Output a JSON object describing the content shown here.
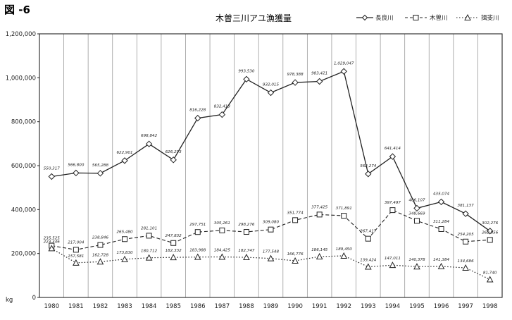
{
  "figure_label": "図 -6",
  "chart_data": {
    "type": "line",
    "title": "木曽三川アユ漁獲量",
    "xlabel": "",
    "ylabel": "",
    "y_unit": "kg",
    "ylim": [
      0,
      1200000
    ],
    "y_ticks": [
      0,
      200000,
      400000,
      600000,
      800000,
      1000000,
      1200000
    ],
    "y_tick_labels": [
      "0",
      "200,000",
      "400,000",
      "600,000",
      "800,000",
      "1,000,000",
      "1,200,000"
    ],
    "x": [
      "1980",
      "1981",
      "1982",
      "1983",
      "1984",
      "1985",
      "1986",
      "1987",
      "1988",
      "1989",
      "1990",
      "1991",
      "1992",
      "1993",
      "1994",
      "1995",
      "1996",
      "1997",
      "1998"
    ],
    "grid": "vertical",
    "legend_position": "top-right",
    "series": [
      {
        "name": "長良川",
        "marker": "diamond",
        "line": "solid",
        "values": [
          550317,
          566800,
          565288,
          622901,
          698842,
          626213,
          816228,
          832413,
          993530,
          932015,
          978388,
          983421,
          1029047,
          562274,
          641414,
          406107,
          435074,
          381137,
          302276
        ],
        "labels": [
          "550,317",
          "566,800",
          "565,288",
          "622,901",
          "698,842",
          "626,213",
          "816,228",
          "832,413",
          "993,530",
          "932,015",
          "978,388",
          "983,421",
          "1,029,047",
          "562,274",
          "641,414",
          "406,107",
          "435,074",
          "381,137",
          "302,276"
        ]
      },
      {
        "name": "木曽川",
        "marker": "square",
        "line": "dashed",
        "values": [
          235525,
          217004,
          238846,
          265480,
          281101,
          247832,
          297751,
          305261,
          298276,
          309080,
          351774,
          377425,
          371891,
          267417,
          397497,
          348669,
          311284,
          254205,
          262056
        ],
        "labels": [
          "235,525",
          "217,004",
          "238,846",
          "265,480",
          "281,101",
          "247,832",
          "297,751",
          "305,261",
          "298,276",
          "309,080",
          "351,774",
          "377,425",
          "371,891",
          "267,417",
          "397,497",
          "348,669",
          "311,284",
          "254,205",
          "262,056"
        ]
      },
      {
        "name": "揖斐川",
        "marker": "triangle",
        "line": "dotted",
        "values": [
          223346,
          157581,
          162728,
          173830,
          180712,
          182332,
          183988,
          184425,
          182747,
          177548,
          166776,
          186145,
          189450,
          139424,
          147011,
          140378,
          141384,
          134686,
          81740
        ],
        "labels": [
          "223,346",
          "157,581",
          "162,728",
          "173,830",
          "180,712",
          "182,332",
          "183,988",
          "184,425",
          "182,747",
          "177,548",
          "166,776",
          "186,145",
          "189,450",
          "139,424",
          "147,011",
          "140,378",
          "141,384",
          "134,686",
          "81,740"
        ]
      }
    ]
  }
}
